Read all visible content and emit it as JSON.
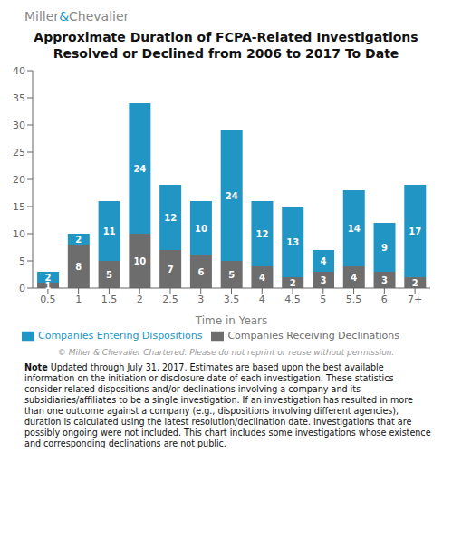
{
  "chart_data": {
    "type": "bar",
    "title": "Approximate Duration of FCPA-Related Investigations",
    "subtitle": "Resolved or Declined from 2006 to 2017 To Date",
    "x_label": "Time in Years",
    "categories": [
      "0.5",
      "1",
      "1.5",
      "2",
      "2.5",
      "3",
      "3.5",
      "4",
      "4.5",
      "5",
      "5.5",
      "6",
      "7+"
    ],
    "series": [
      {
        "name": "Companies Receiving Declinations",
        "color": "#6d6d6d",
        "values": [
          1,
          8,
          5,
          10,
          7,
          6,
          5,
          4,
          2,
          3,
          4,
          3,
          2
        ]
      },
      {
        "name": "Companies Entering Dispositions",
        "color": "#2196c4",
        "values": [
          2,
          2,
          11,
          24,
          12,
          10,
          24,
          12,
          13,
          4,
          14,
          9,
          17
        ]
      }
    ],
    "ylim": [
      0,
      40
    ],
    "yticks": [
      0,
      5,
      10,
      15,
      20,
      25,
      30,
      35,
      40
    ],
    "stacked": true,
    "data_labels": true,
    "grid": false,
    "legend": "bottom",
    "annotations": [
      {
        "text": "Miller",
        "color": "#888888"
      },
      {
        "text": "&",
        "color": "#2196c4"
      },
      {
        "text": "Chevalier",
        "color": "#888888"
      },
      {
        "text": "© Miller & Chevalier Chartered. Please do not reprint or reuse without permission."
      },
      {
        "text": "Note"
      },
      {
        "text": " Updated through July 31, 2017. Estimates are based upon the best available information on the initiation or disclosure date of each investigation. These statistics consider related dispositions and/or declinations involving a company and its subsidiaries/affiliates to be a single investigation. If an investigation has resulted in more than one outcome against a company (e.g., dispositions involving different agencies), duration is calculated using the latest resolution/declination date.  Investigations that are possibly ongoing were not included. This chart includes some investigations whose existence and corresponding declinations are not public."
      }
    ]
  }
}
